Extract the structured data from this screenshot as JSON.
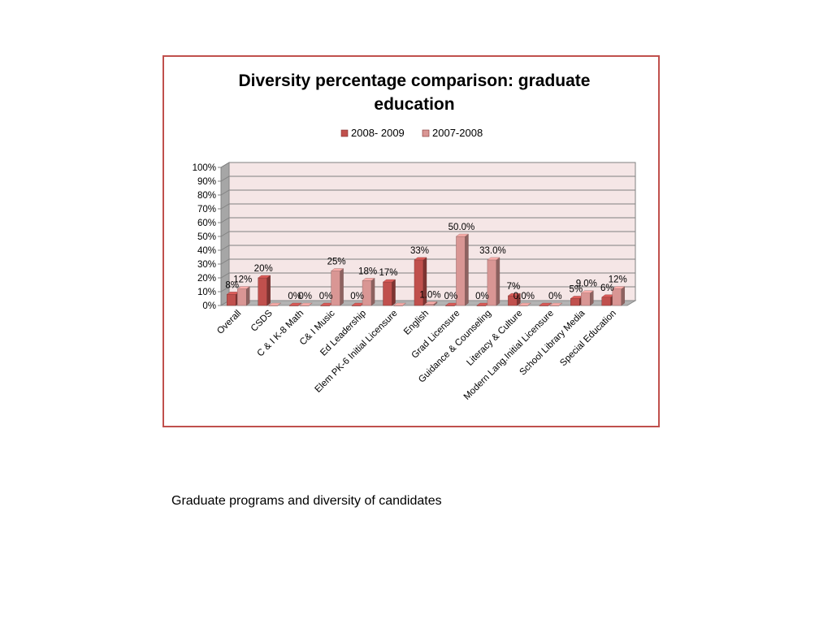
{
  "caption": "Graduate programs and diversity of candidates",
  "colors": {
    "frame_border": "#c0504d",
    "series_2008_2009": "#c0504d",
    "series_2007_2008": "#d99694",
    "plot_background": "#f5e6e6"
  },
  "chart_data": {
    "type": "bar",
    "title_lines": [
      "Diversity percentage comparison: graduate",
      "education"
    ],
    "legend_position": "top",
    "grid": true,
    "ylim": [
      0,
      100
    ],
    "y_ticks": [
      "0%",
      "10%",
      "20%",
      "30%",
      "40%",
      "50%",
      "60%",
      "70%",
      "80%",
      "90%",
      "100%"
    ],
    "categories": [
      "Overall",
      "CSDS",
      "C & I K-8 Math",
      "C& I Music",
      "Ed Leadership",
      "Elem PK-6 Initial Licensure",
      "English",
      "Grad Licensure",
      "Guidance & Counseling",
      "Literacy & Culture",
      "Modern Lang.Initial Licensure",
      "School Library Media",
      "Special Education"
    ],
    "series": [
      {
        "name": "2008- 2009",
        "values": [
          8,
          20,
          0,
          0,
          0,
          17,
          33,
          0,
          0,
          7,
          0,
          5,
          6
        ],
        "labels": [
          "8%",
          "20%",
          "0%",
          "0%",
          "0%",
          "17%",
          "33%",
          "0%",
          "0%",
          "7%",
          "",
          "5%",
          "6%"
        ]
      },
      {
        "name": "2007-2008",
        "values": [
          12,
          0,
          0,
          25,
          18,
          0,
          1,
          50,
          33,
          0,
          0,
          9,
          12
        ],
        "labels": [
          "12%",
          "",
          "0%",
          "25%",
          "18%",
          "",
          "1.0%",
          "50.0%",
          "33.0%",
          "0.0%",
          "0%",
          "9.0%",
          "12%"
        ]
      }
    ]
  }
}
